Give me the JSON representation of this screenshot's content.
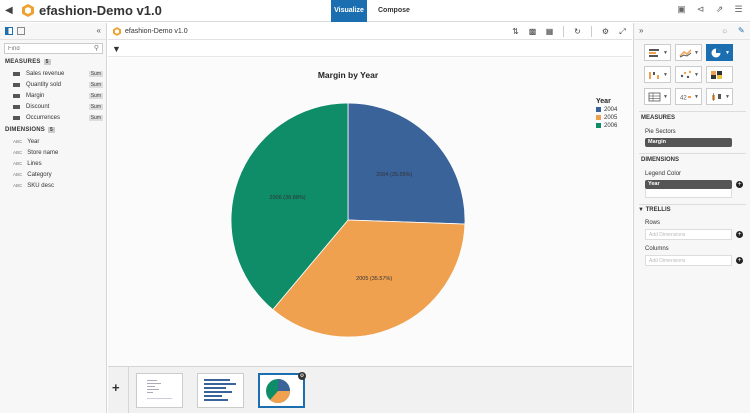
{
  "app": {
    "title": "efashion-Demo v1.0"
  },
  "tabs": [
    {
      "label": "Visualize"
    },
    {
      "label": "Compose"
    }
  ],
  "left_panel": {
    "find_placeholder": "Find",
    "measures": {
      "title": "MEASURES",
      "count": "5",
      "items": [
        {
          "label": "Sales revenue",
          "agg": "Sum"
        },
        {
          "label": "Quantity sold",
          "agg": "Sum"
        },
        {
          "label": "Margin",
          "agg": "Sum"
        },
        {
          "label": "Discount",
          "agg": "Sum"
        },
        {
          "label": "Occurrences",
          "agg": "Sum"
        }
      ]
    },
    "dimensions": {
      "title": "DIMENSIONS",
      "count": "5",
      "type_tag": "ABC",
      "items": [
        {
          "label": "Year"
        },
        {
          "label": "Store name"
        },
        {
          "label": "Lines"
        },
        {
          "label": "Category"
        },
        {
          "label": "SKU desc"
        }
      ]
    }
  },
  "document": {
    "title": "efashion-Demo v1.0"
  },
  "chart_data": {
    "type": "pie",
    "title": "Margin by Year",
    "legend_title": "Year",
    "legend_placement": "top-right",
    "categories": [
      "2004",
      "2005",
      "2006"
    ],
    "values": [
      25.55,
      35.57,
      38.88
    ],
    "labels": [
      "2004 (25.55%)",
      "2005 (35.57%)",
      "2006 (38.88%)"
    ],
    "colors": [
      "#3a6399",
      "#f0a150",
      "#0f8d69"
    ]
  },
  "right_panel": {
    "measures_title": "MEASURES",
    "pie_sectors_label": "Pie Sectors",
    "pie_sectors_value": "Margin",
    "dimensions_title": "DIMENSIONS",
    "legend_color_label": "Legend Color",
    "legend_color_value": "Year",
    "trellis_title": "TRELLIS",
    "rows_label": "Rows",
    "rows_placeholder": "Add Dimensions",
    "columns_label": "Columns",
    "columns_placeholder": "Add Dimensions"
  }
}
